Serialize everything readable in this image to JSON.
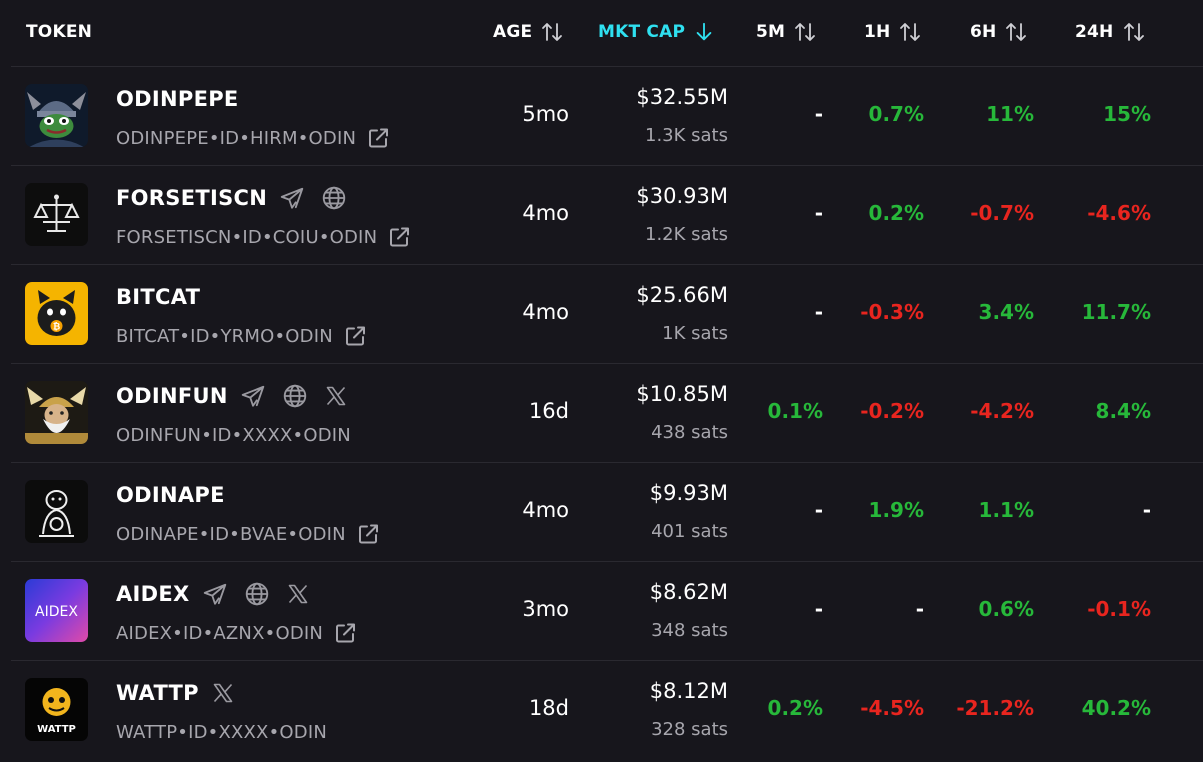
{
  "header": {
    "token": "TOKEN",
    "age": "AGE",
    "mktcap": "MKT CAP",
    "m5": "5M",
    "h1": "1H",
    "h6": "6H",
    "h24": "24H"
  },
  "colors": {
    "background": "#17161c",
    "active_sort": "#2fe0f0",
    "positive": "#27b83a",
    "negative": "#e8251f",
    "muted_text": "#a7a6ad"
  },
  "rows": [
    {
      "name": "ODINPEPE",
      "id": "ODINPEPE•ID•HIRM•ODIN",
      "age": "5mo",
      "mktcap": "$32.55M",
      "sats": "1.3K sats",
      "m5": "-",
      "h1": "0.7%",
      "h6": "11%",
      "h24": "15%"
    },
    {
      "name": "FORSETISCN",
      "id": "FORSETISCN•ID•COIU•ODIN",
      "age": "4mo",
      "mktcap": "$30.93M",
      "sats": "1.2K sats",
      "m5": "-",
      "h1": "0.2%",
      "h6": "-0.7%",
      "h24": "-4.6%"
    },
    {
      "name": "BITCAT",
      "id": "BITCAT•ID•YRMO•ODIN",
      "age": "4mo",
      "mktcap": "$25.66M",
      "sats": "1K sats",
      "m5": "-",
      "h1": "-0.3%",
      "h6": "3.4%",
      "h24": "11.7%"
    },
    {
      "name": "ODINFUN",
      "id": "ODINFUN•ID•XXXX•ODIN",
      "age": "16d",
      "mktcap": "$10.85M",
      "sats": "438 sats",
      "m5": "0.1%",
      "h1": "-0.2%",
      "h6": "-4.2%",
      "h24": "8.4%"
    },
    {
      "name": "ODINAPE",
      "id": "ODINAPE•ID•BVAE•ODIN",
      "age": "4mo",
      "mktcap": "$9.93M",
      "sats": "401 sats",
      "m5": "-",
      "h1": "1.9%",
      "h6": "1.1%",
      "h24": "-"
    },
    {
      "name": "AIDEX",
      "id": "AIDEX•ID•AZNX•ODIN",
      "age": "3mo",
      "mktcap": "$8.62M",
      "sats": "348 sats",
      "m5": "-",
      "h1": "-",
      "h6": "0.6%",
      "h24": "-0.1%"
    },
    {
      "name": "WATTP",
      "id": "WATTP•ID•XXXX•ODIN",
      "age": "18d",
      "mktcap": "$8.12M",
      "sats": "328 sats",
      "m5": "0.2%",
      "h1": "-4.5%",
      "h6": "-21.2%",
      "h24": "40.2%"
    }
  ],
  "avatars": {
    "aidex_text": "AIDEX",
    "wattp_text": "WATTP"
  }
}
